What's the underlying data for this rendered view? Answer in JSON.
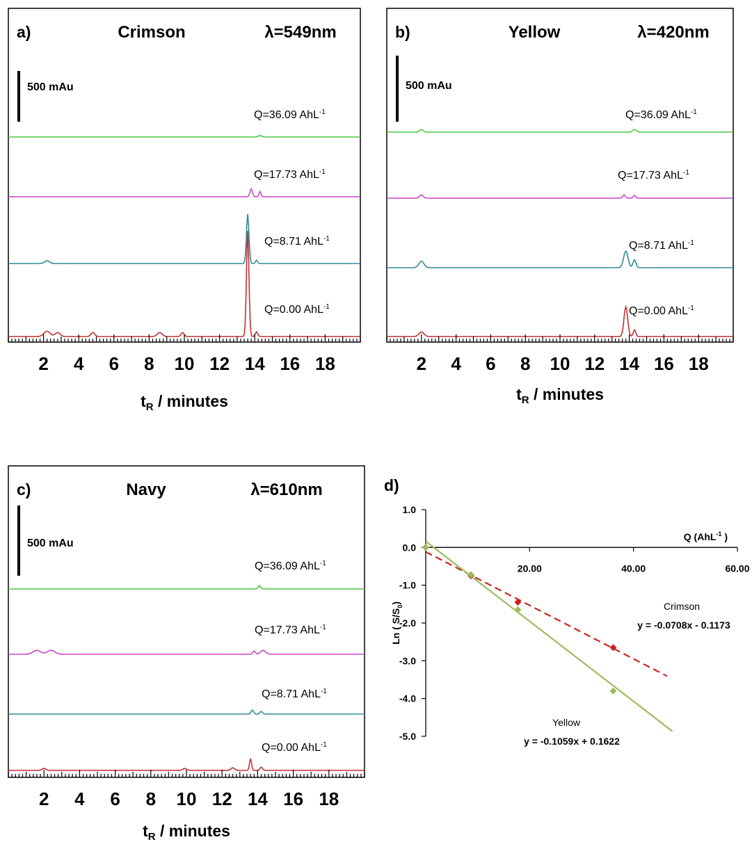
{
  "chart_data": [
    {
      "type": "line",
      "panel": "a)",
      "title": "Crimson",
      "wavelength": "λ=549nm",
      "scale_bar": "500 mAu",
      "xlabel_main": "t",
      "xlabel_sub": "R",
      "xlabel_rest": " / minutes",
      "x_ticks": [
        "2",
        "4",
        "6",
        "8",
        "10",
        "12",
        "14",
        "16",
        "18"
      ],
      "x_range": [
        0,
        20
      ],
      "series": [
        {
          "name": "Q=36.09 AhL",
          "sup": "-1",
          "color": "#4fc447",
          "peaks": [
            [
              14.3,
              0.02,
              0.15
            ]
          ]
        },
        {
          "name": "Q=17.73 AhL",
          "sup": "-1",
          "color": "#cc44cc",
          "peaks": [
            [
              13.8,
              0.12,
              0.1
            ],
            [
              14.3,
              0.08,
              0.08
            ]
          ]
        },
        {
          "name": "Q=8.71 AhL",
          "sup": "-1",
          "color": "#2e8a95",
          "peaks": [
            [
              2.2,
              0.04,
              0.2
            ],
            [
              13.6,
              0.75,
              0.1
            ],
            [
              14.1,
              0.05,
              0.08
            ]
          ]
        },
        {
          "name": "Q=0.00 AhL",
          "sup": "-1",
          "color": "#c03030",
          "peaks": [
            [
              2.2,
              0.08,
              0.25
            ],
            [
              2.8,
              0.06,
              0.2
            ],
            [
              4.8,
              0.06,
              0.15
            ],
            [
              8.6,
              0.06,
              0.2
            ],
            [
              9.9,
              0.06,
              0.12
            ],
            [
              13.6,
              1.6,
              0.1
            ],
            [
              14.1,
              0.07,
              0.1
            ]
          ]
        }
      ]
    },
    {
      "type": "line",
      "panel": "b)",
      "title": "Yellow",
      "wavelength": "λ=420nm",
      "scale_bar": "500 mAu",
      "xlabel_main": "t",
      "xlabel_sub": "R",
      "xlabel_rest": " / minutes",
      "x_ticks": [
        "2",
        "4",
        "6",
        "8",
        "10",
        "12",
        "14",
        "16",
        "18"
      ],
      "x_range": [
        0,
        20
      ],
      "series": [
        {
          "name": "Q=36.09 AhL",
          "sup": "-1",
          "color": "#4fc447",
          "peaks": [
            [
              2.0,
              0.04,
              0.15
            ],
            [
              14.3,
              0.04,
              0.15
            ]
          ]
        },
        {
          "name": "Q=17.73 AhL",
          "sup": "-1",
          "color": "#cc44cc",
          "peaks": [
            [
              2.0,
              0.05,
              0.15
            ],
            [
              13.7,
              0.05,
              0.1
            ],
            [
              14.3,
              0.04,
              0.1
            ]
          ]
        },
        {
          "name": "Q=8.71 AhL",
          "sup": "-1",
          "color": "#2e8a95",
          "peaks": [
            [
              2.0,
              0.1,
              0.2
            ],
            [
              13.8,
              0.25,
              0.18
            ],
            [
              14.3,
              0.12,
              0.12
            ]
          ]
        },
        {
          "name": "Q=0.00 AhL",
          "sup": "-1",
          "color": "#c03030",
          "peaks": [
            [
              2.0,
              0.07,
              0.2
            ],
            [
              13.8,
              0.45,
              0.15
            ],
            [
              14.3,
              0.1,
              0.1
            ]
          ]
        }
      ]
    },
    {
      "type": "line",
      "panel": "c)",
      "title": "Navy",
      "wavelength": "λ=610nm",
      "scale_bar": "500 mAu",
      "xlabel_main": "t",
      "xlabel_sub": "R",
      "xlabel_rest": " / minutes",
      "x_ticks": [
        "2",
        "4",
        "6",
        "8",
        "10",
        "12",
        "14",
        "16",
        "18"
      ],
      "x_range": [
        0,
        20
      ],
      "series": [
        {
          "name": "Q=36.09 AhL",
          "sup": "-1",
          "color": "#4fc447",
          "peaks": [
            [
              14.1,
              0.05,
              0.1
            ]
          ]
        },
        {
          "name": "Q=17.73 AhL",
          "sup": "-1",
          "color": "#cc44cc",
          "peaks": [
            [
              1.6,
              0.06,
              0.3
            ],
            [
              2.4,
              0.06,
              0.3
            ],
            [
              13.8,
              0.05,
              0.1
            ],
            [
              14.3,
              0.06,
              0.2
            ]
          ]
        },
        {
          "name": "Q=8.71 AhL",
          "sup": "-1",
          "color": "#2e8a95",
          "peaks": [
            [
              13.7,
              0.06,
              0.1
            ],
            [
              14.2,
              0.04,
              0.1
            ]
          ]
        },
        {
          "name": "Q=0.00 AhL",
          "sup": "-1",
          "color": "#c03030",
          "peaks": [
            [
              2.0,
              0.03,
              0.15
            ],
            [
              9.9,
              0.03,
              0.15
            ],
            [
              12.6,
              0.04,
              0.15
            ],
            [
              13.6,
              0.18,
              0.08
            ],
            [
              14.2,
              0.05,
              0.1
            ]
          ]
        }
      ]
    },
    {
      "type": "scatter",
      "panel": "d)",
      "ylabel_main": "Ln ( S/S",
      "ylabel_sub": "0",
      "ylabel_end": ")",
      "xlabel": "Q (AhL",
      "xlabel_sup": "-1",
      "xlabel_end": " )",
      "x_range": [
        0,
        60
      ],
      "y_range": [
        -5,
        1
      ],
      "x_ticks": [
        "20.00",
        "40.00",
        "60.00"
      ],
      "y_ticks": [
        "1.0",
        "0.0",
        "-1.0",
        "-2.0",
        "-3.0",
        "-4.0",
        "-5.0"
      ],
      "series": [
        {
          "name": "Crimson",
          "equation": "y = -0.0708x - 0.1173",
          "color": "#cc2222",
          "x": [
            0,
            8.71,
            17.73,
            36.09
          ],
          "y": [
            0.0,
            -0.75,
            -1.45,
            -2.65
          ],
          "fit": {
            "slope": -0.0708,
            "intercept": -0.1173,
            "x_end": 46.5
          }
        },
        {
          "name": "Yellow",
          "equation": "y = -0.1059x + 0.1622",
          "color": "#9bbb59",
          "x": [
            0,
            8.71,
            17.73,
            36.09
          ],
          "y": [
            0.0,
            -0.72,
            -1.65,
            -3.8
          ],
          "fit": {
            "slope": -0.1059,
            "intercept": 0.1622,
            "x_end": 47.5
          }
        }
      ]
    }
  ]
}
